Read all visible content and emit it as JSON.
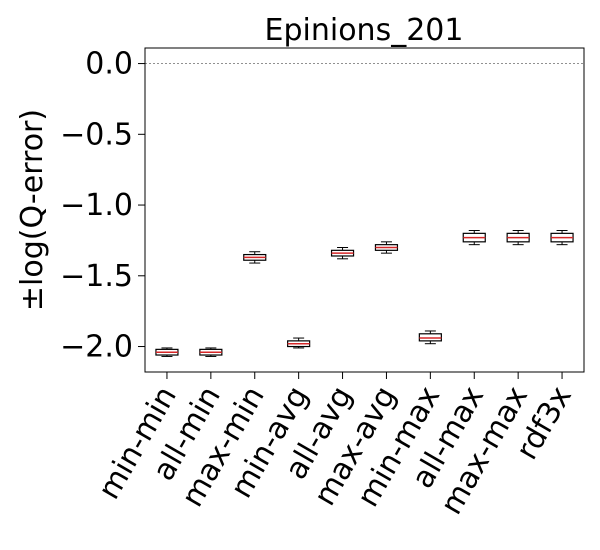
{
  "chart_data": {
    "type": "box",
    "title": "Epinions_201",
    "xlabel": "",
    "ylabel": "±log(Q-error)",
    "ylim": [
      -2.18,
      0.11
    ],
    "yticks": [
      0.0,
      -0.5,
      -1.0,
      -1.5,
      -2.0
    ],
    "ytick_labels": [
      "0.0",
      "−0.5",
      "−1.0",
      "−1.5",
      "−2.0"
    ],
    "reference_line": 0.0,
    "colors": {
      "box": "#000000",
      "median": "#d62728",
      "reference": "#808080"
    },
    "categories": [
      "min-min",
      "all-min",
      "max-min",
      "min-avg",
      "all-avg",
      "max-avg",
      "min-max",
      "all-max",
      "max-max",
      "rdf3x"
    ],
    "boxes": [
      {
        "q1": -2.06,
        "median": -2.04,
        "q3": -2.02,
        "whisker_low": -2.07,
        "whisker_high": -2.01
      },
      {
        "q1": -2.06,
        "median": -2.04,
        "q3": -2.02,
        "whisker_low": -2.07,
        "whisker_high": -2.01
      },
      {
        "q1": -1.39,
        "median": -1.37,
        "q3": -1.35,
        "whisker_low": -1.41,
        "whisker_high": -1.33
      },
      {
        "q1": -2.0,
        "median": -1.98,
        "q3": -1.96,
        "whisker_low": -2.01,
        "whisker_high": -1.94
      },
      {
        "q1": -1.36,
        "median": -1.34,
        "q3": -1.32,
        "whisker_low": -1.38,
        "whisker_high": -1.3
      },
      {
        "q1": -1.32,
        "median": -1.3,
        "q3": -1.28,
        "whisker_low": -1.34,
        "whisker_high": -1.26
      },
      {
        "q1": -1.96,
        "median": -1.94,
        "q3": -1.91,
        "whisker_low": -1.98,
        "whisker_high": -1.89
      },
      {
        "q1": -1.26,
        "median": -1.23,
        "q3": -1.2,
        "whisker_low": -1.28,
        "whisker_high": -1.18
      },
      {
        "q1": -1.26,
        "median": -1.23,
        "q3": -1.2,
        "whisker_low": -1.28,
        "whisker_high": -1.18
      },
      {
        "q1": -1.26,
        "median": -1.23,
        "q3": -1.2,
        "whisker_low": -1.28,
        "whisker_high": -1.18
      }
    ]
  }
}
